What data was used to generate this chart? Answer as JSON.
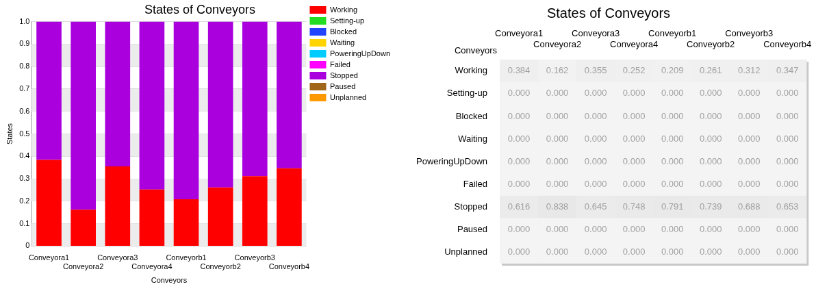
{
  "chart_data": [
    {
      "type": "bar",
      "title": "States of Conveyors",
      "xlabel": "Conveyors",
      "ylabel": "States",
      "stacked": true,
      "categories": [
        "Conveyora1",
        "Conveyora2",
        "Conveyora3",
        "Conveyora4",
        "Conveyorb1",
        "Conveyorb2",
        "Conveyorb3",
        "Conveyorb4"
      ],
      "series": [
        {
          "name": "Working",
          "color": "#ff0000",
          "values": [
            0.384,
            0.162,
            0.355,
            0.252,
            0.209,
            0.261,
            0.312,
            0.347
          ]
        },
        {
          "name": "Setting-up",
          "color": "#22dd22",
          "values": [
            0,
            0,
            0,
            0,
            0,
            0,
            0,
            0
          ]
        },
        {
          "name": "Blocked",
          "color": "#2244ff",
          "values": [
            0,
            0,
            0,
            0,
            0,
            0,
            0,
            0
          ]
        },
        {
          "name": "Waiting",
          "color": "#ffd400",
          "values": [
            0,
            0,
            0,
            0,
            0,
            0,
            0,
            0
          ]
        },
        {
          "name": "PoweringUpDown",
          "color": "#00ccff",
          "values": [
            0,
            0,
            0,
            0,
            0,
            0,
            0,
            0
          ]
        },
        {
          "name": "Failed",
          "color": "#ff00ff",
          "values": [
            0,
            0,
            0,
            0,
            0,
            0,
            0,
            0
          ]
        },
        {
          "name": "Stopped",
          "color": "#aa00dd",
          "values": [
            0.616,
            0.838,
            0.645,
            0.748,
            0.791,
            0.739,
            0.688,
            0.653
          ]
        },
        {
          "name": "Paused",
          "color": "#a0661a",
          "values": [
            0,
            0,
            0,
            0,
            0,
            0,
            0,
            0
          ]
        },
        {
          "name": "Unplanned",
          "color": "#ff9900",
          "values": [
            0,
            0,
            0,
            0,
            0,
            0,
            0,
            0
          ]
        }
      ],
      "ylim": [
        0,
        1
      ],
      "yticks": [
        0,
        0.1,
        0.2,
        0.3,
        0.4,
        0.5,
        0.6,
        0.7,
        0.8,
        0.9,
        {
          "value": 1,
          "label": "1.0"
        }
      ],
      "grid": "y",
      "legend": "right"
    },
    {
      "type": "heatmap",
      "title": "States of Conveyors",
      "xlabel": "Conveyors",
      "categories": [
        "Conveyora1",
        "Conveyora2",
        "Conveyora3",
        "Conveyora4",
        "Conveyorb1",
        "Conveyorb2",
        "Conveyorb3",
        "Conveyorb4"
      ],
      "y_categories": [
        "Working",
        "Setting-up",
        "Blocked",
        "Waiting",
        "PoweringUpDown",
        "Failed",
        "Stopped",
        "Paused",
        "Unplanned"
      ],
      "cells": [
        [
          0.384,
          0.162,
          0.355,
          0.252,
          0.209,
          0.261,
          0.312,
          0.347
        ],
        [
          0,
          0,
          0,
          0,
          0,
          0,
          0,
          0
        ],
        [
          0,
          0,
          0,
          0,
          0,
          0,
          0,
          0
        ],
        [
          0,
          0,
          0,
          0,
          0,
          0,
          0,
          0
        ],
        [
          0,
          0,
          0,
          0,
          0,
          0,
          0,
          0
        ],
        [
          0,
          0,
          0,
          0,
          0,
          0,
          0,
          0
        ],
        [
          0.616,
          0.838,
          0.645,
          0.748,
          0.791,
          0.739,
          0.688,
          0.653
        ],
        [
          0,
          0,
          0,
          0,
          0,
          0,
          0,
          0
        ],
        [
          0,
          0,
          0,
          0,
          0,
          0,
          0,
          0
        ]
      ],
      "cell_labels": [
        [
          "0.384",
          "0.162",
          "0.355",
          "0.252",
          "0.209",
          "0.261",
          "0.312",
          "0.347"
        ],
        [
          "0.000",
          "0.000",
          "0.000",
          "0.000",
          "0.000",
          "0.000",
          "0.000",
          "0.000"
        ],
        [
          "0.000",
          "0.000",
          "0.000",
          "0.000",
          "0.000",
          "0.000",
          "0.000",
          "0.000"
        ],
        [
          "0.000",
          "0.000",
          "0.000",
          "0.000",
          "0.000",
          "0.000",
          "0.000",
          "0.000"
        ],
        [
          "0.000",
          "0.000",
          "0.000",
          "0.000",
          "0.000",
          "0.000",
          "0.000",
          "0.000"
        ],
        [
          "0.000",
          "0.000",
          "0.000",
          "0.000",
          "0.000",
          "0.000",
          "0.000",
          "0.000"
        ],
        [
          "0.616",
          "0.838",
          "0.645",
          "0.748",
          "0.791",
          "0.739",
          "0.688",
          "0.653"
        ],
        [
          "0.000",
          "0.000",
          "0.000",
          "0.000",
          "0.000",
          "0.000",
          "0.000",
          "0.000"
        ],
        [
          "0.000",
          "0.000",
          "0.000",
          "0.000",
          "0.000",
          "0.000",
          "0.000",
          "0.000"
        ]
      ]
    }
  ]
}
